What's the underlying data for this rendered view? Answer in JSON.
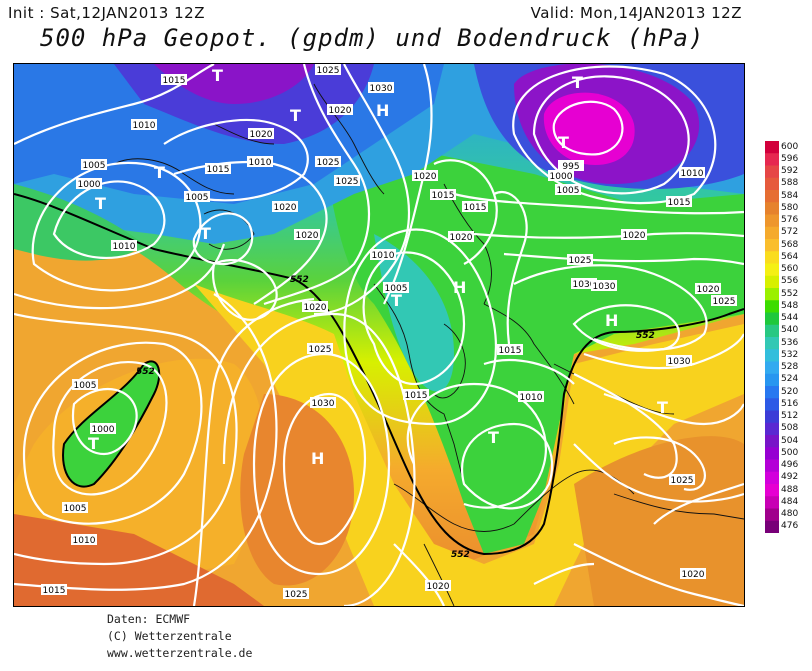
{
  "header": {
    "init": "Init : Sat,12JAN2013 12Z",
    "valid": "Valid: Mon,14JAN2013 12Z",
    "title": "500 hPa Geopot. (gpdm) und Bodendruck (hPa)"
  },
  "credits": {
    "line1": "Daten: ECMWF",
    "line2": "(C) Wetterzentrale",
    "line3": "www.wetterzentrale.de"
  },
  "colorbar": {
    "levels": [
      "600",
      "596",
      "592",
      "588",
      "584",
      "580",
      "576",
      "572",
      "568",
      "564",
      "560",
      "556",
      "552",
      "548",
      "544",
      "540",
      "536",
      "532",
      "528",
      "524",
      "520",
      "516",
      "512",
      "508",
      "504",
      "500",
      "496",
      "492",
      "488",
      "484",
      "480",
      "476"
    ],
    "colors": [
      "#d2003c",
      "#e62850",
      "#e64646",
      "#e65a3c",
      "#e66e32",
      "#e6822d",
      "#ee962d",
      "#f5aa2d",
      "#fabe2d",
      "#fadc1e",
      "#f5f014",
      "#d7f000",
      "#9bf000",
      "#3cdc00",
      "#1ec83c",
      "#28c882",
      "#32c8b4",
      "#32bedc",
      "#32aaf0",
      "#2896f0",
      "#2878f0",
      "#2d5ae6",
      "#3c3cd7",
      "#5a28d2",
      "#7814c8",
      "#9600d2",
      "#b400d7",
      "#d200dc",
      "#e600d2",
      "#c800b4",
      "#a0008c",
      "#780078"
    ]
  },
  "map": {
    "isobar_labels": [
      "1015",
      "1025",
      "1030",
      "1020",
      "1010",
      "1005",
      "1000",
      "995",
      "1015",
      "1020",
      "1025",
      "1020",
      "1000",
      "1005",
      "1010",
      "1015",
      "1020",
      "1025",
      "1015",
      "1020",
      "1010",
      "1005",
      "1010",
      "1020",
      "1030",
      "1025",
      "1020",
      "1030",
      "1015",
      "1005",
      "1015",
      "1010",
      "1030",
      "1020",
      "1025",
      "1010",
      "1005",
      "1000",
      "1005",
      "1010",
      "1015",
      "1025",
      "1020",
      "1030",
      "1025",
      "1025",
      "1020",
      "1020",
      "1015"
    ],
    "contour_labels": [
      "552",
      "552",
      "552",
      "552"
    ],
    "pressure_centers": [
      {
        "sym": "T",
        "name": "low-scandinavia-north"
      },
      {
        "sym": "T",
        "name": "low-norway"
      },
      {
        "sym": "T",
        "name": "low-greenland-east"
      },
      {
        "sym": "T",
        "name": "low-iceland"
      },
      {
        "sym": "T",
        "name": "low-russia-north"
      },
      {
        "sym": "T",
        "name": "low-norwegian-sea"
      },
      {
        "sym": "T",
        "name": "low-baltic"
      },
      {
        "sym": "T",
        "name": "low-atlantic"
      },
      {
        "sym": "T",
        "name": "low-central-europe"
      },
      {
        "sym": "T",
        "name": "low-black-sea"
      },
      {
        "sym": "T",
        "name": "low-mediterranean"
      },
      {
        "sym": "H",
        "name": "high-arctic"
      },
      {
        "sym": "H",
        "name": "high-scandinavia"
      },
      {
        "sym": "H",
        "name": "high-russia"
      },
      {
        "sym": "H",
        "name": "high-azores"
      }
    ]
  }
}
